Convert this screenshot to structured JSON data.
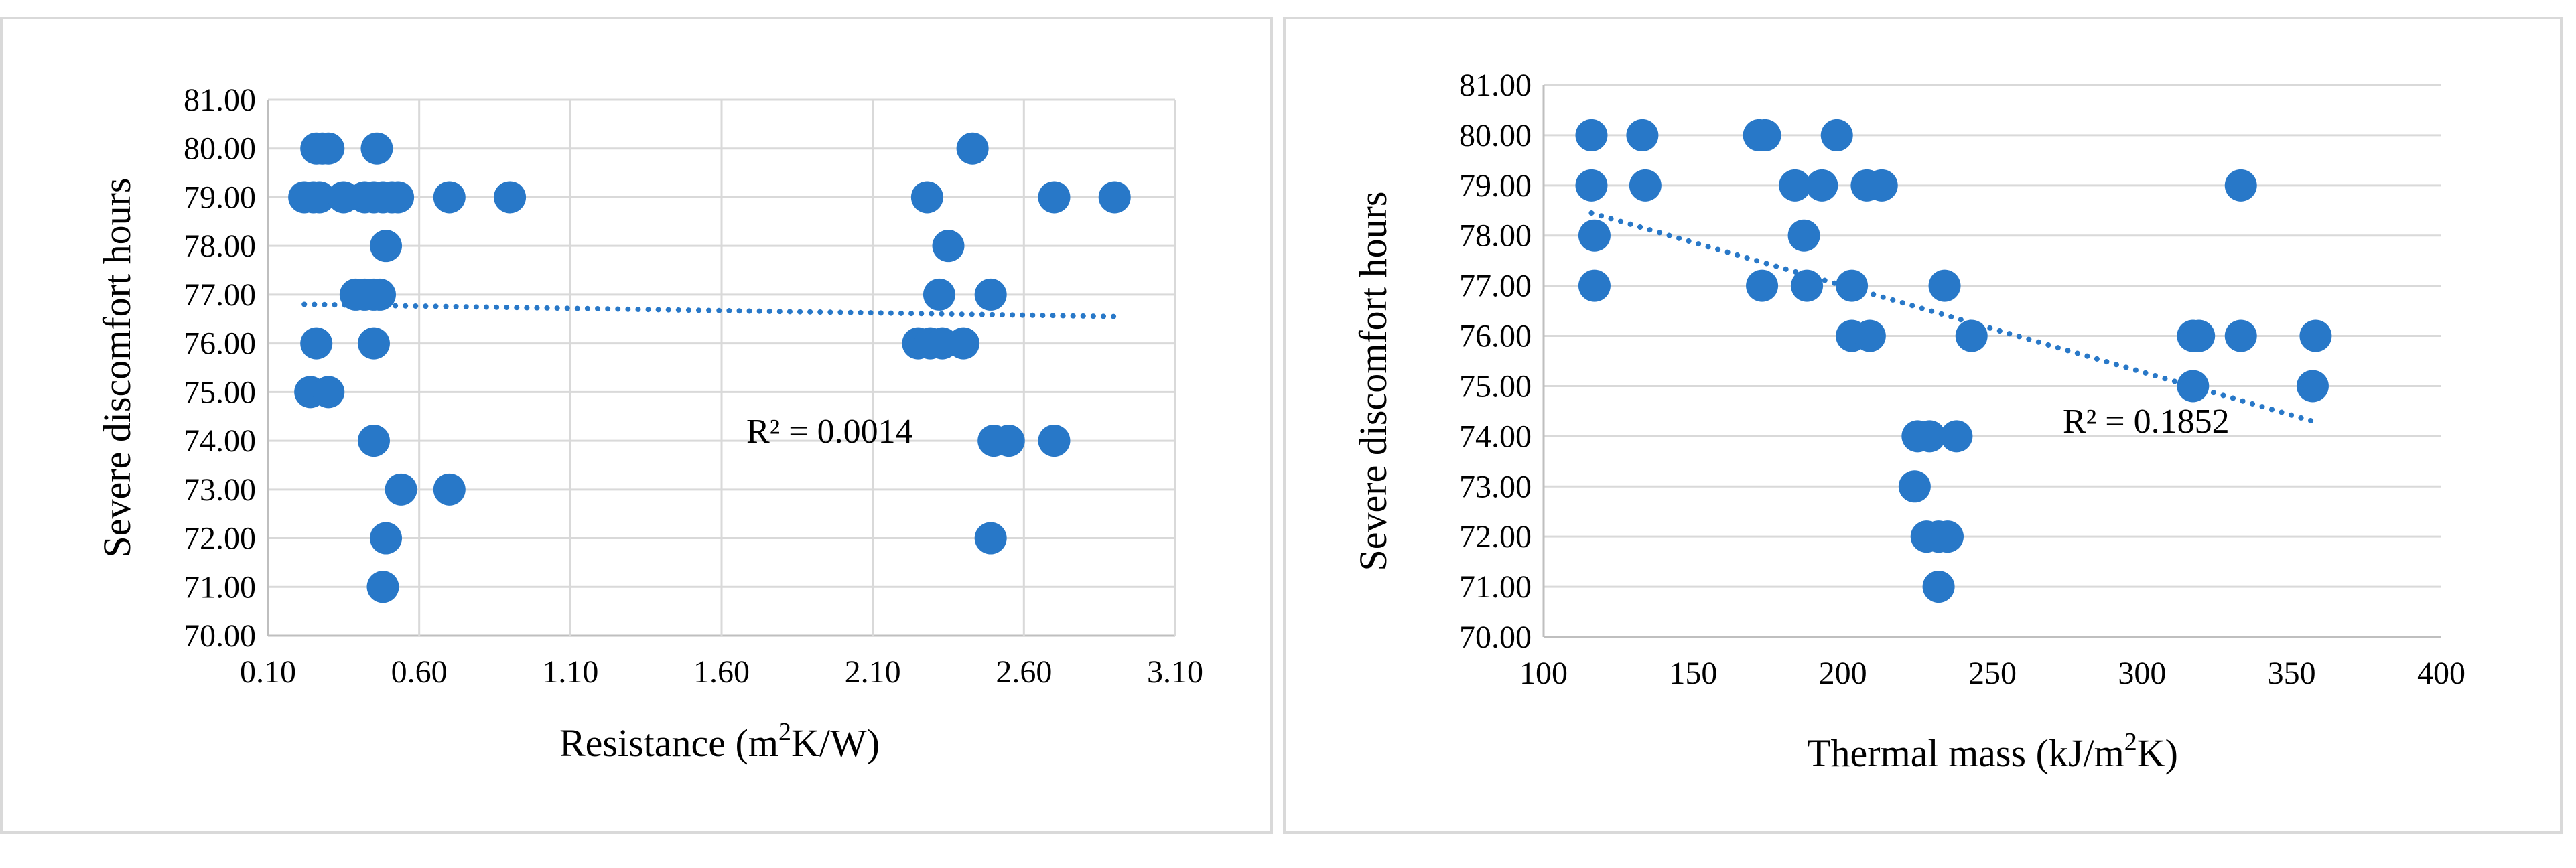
{
  "colors": {
    "point": "#2878c8",
    "grid": "#d9d9d9",
    "axis": "#bfbfbf"
  },
  "chart_data": [
    {
      "type": "scatter",
      "xlabel_main": "Resistance (m",
      "xlabel_sup": "2",
      "xlabel_tail": "K/W)",
      "ylabel": "Severe discomfort hours",
      "xlim": [
        0.1,
        3.1
      ],
      "ylim": [
        70.0,
        81.0
      ],
      "x_ticks": [
        "0.10",
        "0.60",
        "1.10",
        "1.60",
        "2.10",
        "2.60",
        "3.10"
      ],
      "y_ticks": [
        "70.00",
        "71.00",
        "72.00",
        "73.00",
        "74.00",
        "75.00",
        "76.00",
        "77.00",
        "78.00",
        "79.00",
        "80.00",
        "81.00"
      ],
      "trendline": {
        "style": "dotted-linear",
        "r2_label": "R² = 0.0014",
        "x_range": [
          0.22,
          2.9
        ],
        "y_range": [
          76.8,
          76.55
        ]
      },
      "grid": "vertical-and-horizontal",
      "points": [
        [
          0.26,
          80
        ],
        [
          0.28,
          80
        ],
        [
          0.3,
          80
        ],
        [
          0.46,
          80
        ],
        [
          2.43,
          80
        ],
        [
          0.22,
          79
        ],
        [
          0.25,
          79
        ],
        [
          0.27,
          79
        ],
        [
          0.35,
          79
        ],
        [
          0.42,
          79
        ],
        [
          0.45,
          79
        ],
        [
          0.48,
          79
        ],
        [
          0.51,
          79
        ],
        [
          0.53,
          79
        ],
        [
          0.7,
          79
        ],
        [
          0.9,
          79
        ],
        [
          2.28,
          79
        ],
        [
          2.7,
          79
        ],
        [
          2.9,
          79
        ],
        [
          0.49,
          78
        ],
        [
          2.35,
          78
        ],
        [
          0.39,
          77
        ],
        [
          0.42,
          77
        ],
        [
          0.45,
          77
        ],
        [
          0.47,
          77
        ],
        [
          2.32,
          77
        ],
        [
          2.49,
          77
        ],
        [
          0.26,
          76
        ],
        [
          0.45,
          76
        ],
        [
          2.25,
          76
        ],
        [
          2.29,
          76
        ],
        [
          2.33,
          76
        ],
        [
          2.4,
          76
        ],
        [
          0.24,
          75
        ],
        [
          0.3,
          75
        ],
        [
          0.45,
          74
        ],
        [
          2.5,
          74
        ],
        [
          2.55,
          74
        ],
        [
          2.7,
          74
        ],
        [
          0.54,
          73
        ],
        [
          0.7,
          73
        ],
        [
          0.49,
          72
        ],
        [
          2.49,
          72
        ],
        [
          0.48,
          71
        ]
      ]
    },
    {
      "type": "scatter",
      "xlabel_main": "Thermal mass (kJ/m",
      "xlabel_sup": "2",
      "xlabel_tail": "K)",
      "ylabel": "Severe discomfort hours",
      "xlim": [
        100,
        400
      ],
      "ylim": [
        70.0,
        81.0
      ],
      "x_ticks": [
        "100",
        "150",
        "200",
        "250",
        "300",
        "350",
        "400"
      ],
      "y_ticks": [
        "70.00",
        "71.00",
        "72.00",
        "73.00",
        "74.00",
        "75.00",
        "76.00",
        "77.00",
        "78.00",
        "79.00",
        "80.00",
        "81.00"
      ],
      "trendline": {
        "style": "dotted-linear",
        "r2_label": "R² = 0.1852",
        "x_range": [
          116,
          357
        ],
        "y_range": [
          78.45,
          74.3
        ]
      },
      "grid": "horizontal-only",
      "points": [
        [
          116,
          80
        ],
        [
          133,
          80
        ],
        [
          172,
          80
        ],
        [
          174,
          80
        ],
        [
          198,
          80
        ],
        [
          116,
          79
        ],
        [
          134,
          79
        ],
        [
          184,
          79
        ],
        [
          193,
          79
        ],
        [
          208,
          79
        ],
        [
          213,
          79
        ],
        [
          333,
          79
        ],
        [
          117,
          78
        ],
        [
          187,
          78
        ],
        [
          117,
          77
        ],
        [
          173,
          77
        ],
        [
          188,
          77
        ],
        [
          203,
          77
        ],
        [
          234,
          77
        ],
        [
          203,
          76
        ],
        [
          209,
          76
        ],
        [
          243,
          76
        ],
        [
          317,
          76
        ],
        [
          319,
          76
        ],
        [
          333,
          76
        ],
        [
          358,
          76
        ],
        [
          317,
          75
        ],
        [
          357,
          75
        ],
        [
          225,
          74
        ],
        [
          229,
          74
        ],
        [
          238,
          74
        ],
        [
          224,
          73
        ],
        [
          228,
          72
        ],
        [
          232,
          72
        ],
        [
          235,
          72
        ],
        [
          232,
          71
        ]
      ]
    }
  ]
}
